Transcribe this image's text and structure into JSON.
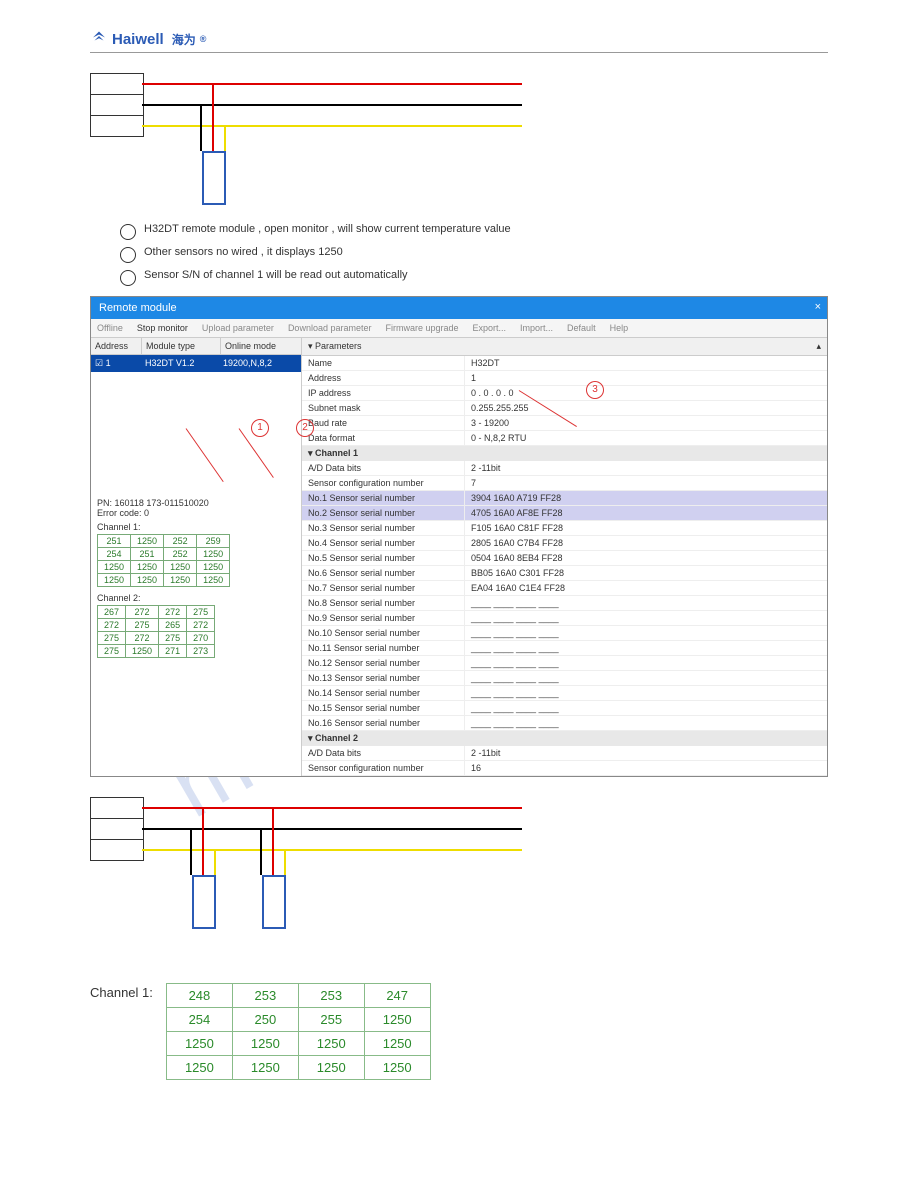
{
  "header": {
    "brand": "Haiwell",
    "cn": "海为"
  },
  "wiring1": {
    "sensor_colors": [
      "#d00",
      "#000",
      "#ed0"
    ]
  },
  "list": {
    "i1": "H32DT remote module , open monitor , will show current temperature value",
    "i2": "Other sensors no wired , it displays 1250",
    "i3": "Sensor S/N of channel 1 will be read out automatically"
  },
  "win": {
    "title": "Remote module",
    "tb": [
      "Offline",
      "Stop monitor",
      "Upload parameter",
      "Download parameter",
      "Firmware upgrade",
      "Export...",
      "Import...",
      "Default",
      "Help"
    ],
    "cols": {
      "a": "Address",
      "b": "Module type",
      "c": "Online mode"
    },
    "row": {
      "a": "1",
      "b": "H32DT V1.2",
      "c": "19200,N,8,2"
    },
    "phead": "Parameters",
    "p": [
      [
        "Name",
        "H32DT"
      ],
      [
        "Address",
        "1"
      ],
      [
        "IP address",
        "0 . 0 . 0 . 0"
      ],
      [
        "Subnet mask",
        "0.255.255.255"
      ],
      [
        "Baud rate",
        "3 - 19200"
      ],
      [
        "Data format",
        "0 - N,8,2 RTU"
      ]
    ],
    "ch1": "Channel 1",
    "c1": [
      [
        "A/D Data bits",
        "2 -11bit"
      ],
      [
        "Sensor configuration number",
        "7"
      ],
      [
        "No.1 Sensor serial number",
        "3904 16A0 A719 FF28"
      ],
      [
        "No.2 Sensor serial number",
        "4705 16A0 AF8E FF28"
      ],
      [
        "No.3 Sensor serial number",
        "F105 16A0 C81F FF28"
      ],
      [
        "No.4 Sensor serial number",
        "2805 16A0 C7B4 FF28"
      ],
      [
        "No.5 Sensor serial number",
        "0504 16A0 8EB4 FF28"
      ],
      [
        "No.6 Sensor serial number",
        "BB05 16A0 C301 FF28"
      ],
      [
        "No.7 Sensor serial number",
        "EA04 16A0 C1E4 FF28"
      ],
      [
        "No.8 Sensor serial number",
        "____ ____ ____ ____"
      ],
      [
        "No.9 Sensor serial number",
        "____ ____ ____ ____"
      ],
      [
        "No.10 Sensor serial number",
        "____ ____ ____ ____"
      ],
      [
        "No.11 Sensor serial number",
        "____ ____ ____ ____"
      ],
      [
        "No.12 Sensor serial number",
        "____ ____ ____ ____"
      ],
      [
        "No.13 Sensor serial number",
        "____ ____ ____ ____"
      ],
      [
        "No.14 Sensor serial number",
        "____ ____ ____ ____"
      ],
      [
        "No.15 Sensor serial number",
        "____ ____ ____ ____"
      ],
      [
        "No.16 Sensor serial number",
        "____ ____ ____ ____"
      ]
    ],
    "ch2": "Channel 2",
    "c2": [
      [
        "A/D Data bits",
        "2 -11bit"
      ],
      [
        "Sensor configuration number",
        "16"
      ]
    ],
    "pn": "PN:  160118  173-011510020",
    "err": "Error code:  0",
    "t1l": "Channel 1:",
    "t1": [
      [
        "251",
        "1250",
        "252",
        "259"
      ],
      [
        "254",
        "251",
        "252",
        "1250"
      ],
      [
        "1250",
        "1250",
        "1250",
        "1250"
      ],
      [
        "1250",
        "1250",
        "1250",
        "1250"
      ]
    ],
    "t2l": "Channel 2:",
    "t2": [
      [
        "267",
        "272",
        "272",
        "275"
      ],
      [
        "272",
        "275",
        "265",
        "272"
      ],
      [
        "275",
        "272",
        "275",
        "270"
      ],
      [
        "275",
        "1250",
        "271",
        "273"
      ]
    ]
  },
  "chlabel": "Channel 1:",
  "chtable": [
    [
      "248",
      "253",
      "253",
      "247"
    ],
    [
      "254",
      "250",
      "255",
      "1250"
    ],
    [
      "1250",
      "1250",
      "1250",
      "1250"
    ],
    [
      "1250",
      "1250",
      "1250",
      "1250"
    ]
  ]
}
